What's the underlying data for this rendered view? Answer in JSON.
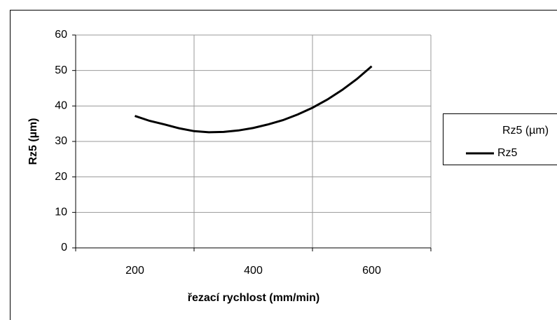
{
  "chart_data": {
    "type": "line",
    "x": [
      200,
      225,
      250,
      275,
      300,
      325,
      350,
      375,
      400,
      425,
      450,
      475,
      500,
      525,
      550,
      575,
      600
    ],
    "series": [
      {
        "name": "Rz5",
        "color": "#000000",
        "values": [
          37.2,
          35.8,
          34.8,
          33.7,
          32.9,
          32.6,
          32.7,
          33.1,
          33.8,
          34.8,
          36.0,
          37.6,
          39.5,
          41.8,
          44.5,
          47.6,
          51.2
        ]
      }
    ],
    "xlim": [
      100,
      700
    ],
    "xticks": [
      200,
      400,
      600
    ],
    "xgrid": [
      100,
      300,
      500,
      700
    ],
    "ylim": [
      0,
      60
    ],
    "yticks": [
      0,
      10,
      20,
      30,
      40,
      50,
      60
    ],
    "grid": true,
    "xlabel": "řezací rychlost (mm/min)",
    "ylabel": "Rz5 (µm)",
    "legend_title": "Rz5 (µm)",
    "legend": "right"
  }
}
